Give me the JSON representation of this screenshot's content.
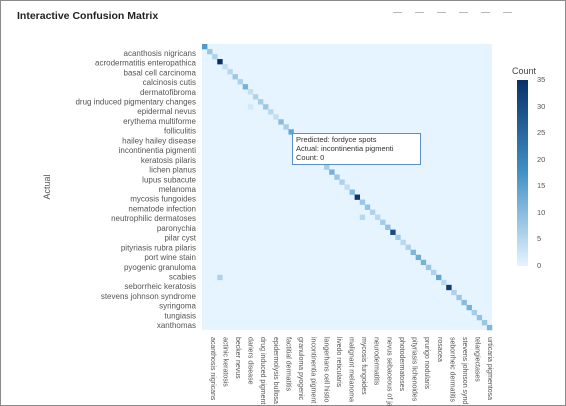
{
  "title": "Interactive Confusion Matrix",
  "toolbar": {
    "icons": [
      "download-icon",
      "zoom-icon",
      "pan-icon",
      "zoom-in-icon",
      "zoom-out-icon",
      "reset-icon"
    ]
  },
  "chart_data": {
    "type": "heatmap",
    "ylabel": "Actual",
    "xlabel": "",
    "y_labels": [
      "acanthosis nigricans",
      "acrodermatitis enteropathica",
      "basal cell carcinoma",
      "calcinosis cutis",
      "dermatofibroma",
      "drug induced pigmentary changes",
      "epidermal nevus",
      "erythema multiforme",
      "folliculitis",
      "hailey hailey disease",
      "incontinentia pigmenti",
      "keratosis pilaris",
      "lichen planus",
      "lupus subacute",
      "melanoma",
      "mycosis fungoides",
      "nematode infection",
      "neutrophilic dermatoses",
      "paronychia",
      "pilar cyst",
      "pityriasis rubra pilaris",
      "port wine stain",
      "pyogenic granuloma",
      "scabies",
      "seborrheic keratosis",
      "stevens johnson syndrome",
      "syringoma",
      "tungiasis",
      "xanthomas"
    ],
    "x_labels": [
      "acanthosis nigricans",
      "actinic keratosis",
      "becker nevus",
      "dariers disease",
      "drug induced pigment",
      "epidermolysis bullosa",
      "factitial dermatitis",
      "granuloma pyogenic",
      "incontinentia pigment",
      "langerhans cell histio",
      "livedo reticularis",
      "malignant melanoma",
      "mycosis fungoides",
      "neurodermatitis",
      "nevus sebaceous of ja",
      "photodermatoses",
      "pityriasis lichenoides",
      "prurigo nodularis",
      "rosacea",
      "seborrheic dermatitis",
      "stevens johnson synd",
      "telangiectases",
      "urticaria pigmentosa"
    ],
    "grid_size": 57,
    "diagonal_counts": [
      16,
      8,
      6,
      35,
      4,
      5,
      8,
      6,
      12,
      4,
      6,
      7,
      8,
      5,
      4,
      10,
      7,
      14,
      6,
      4,
      6,
      7,
      5,
      9,
      7,
      12,
      8,
      6,
      4,
      10,
      34,
      8,
      9,
      6,
      5,
      7,
      9,
      30,
      7,
      5,
      6,
      11,
      13,
      12,
      8,
      6,
      14,
      5,
      33,
      6,
      8,
      10,
      12,
      7,
      9,
      8,
      11
    ],
    "off_diagonal": [
      {
        "row": 34,
        "col": 31,
        "value": 5
      },
      {
        "row": 46,
        "col": 3,
        "value": 6
      },
      {
        "row": 12,
        "col": 9,
        "value": 2
      },
      {
        "row": 20,
        "col": 22,
        "value": 2
      }
    ],
    "colorbar": {
      "title": "Count",
      "min": 0,
      "max": 35,
      "ticks": [
        0,
        5,
        10,
        15,
        20,
        25,
        30,
        35
      ],
      "color_low": "#e6f4ff",
      "color_high": "#08306b"
    },
    "hover": {
      "predicted": "Predicted: fordyce spots",
      "actual": "Actual: incontinentia pigmenti",
      "count": "Count: 0"
    }
  }
}
